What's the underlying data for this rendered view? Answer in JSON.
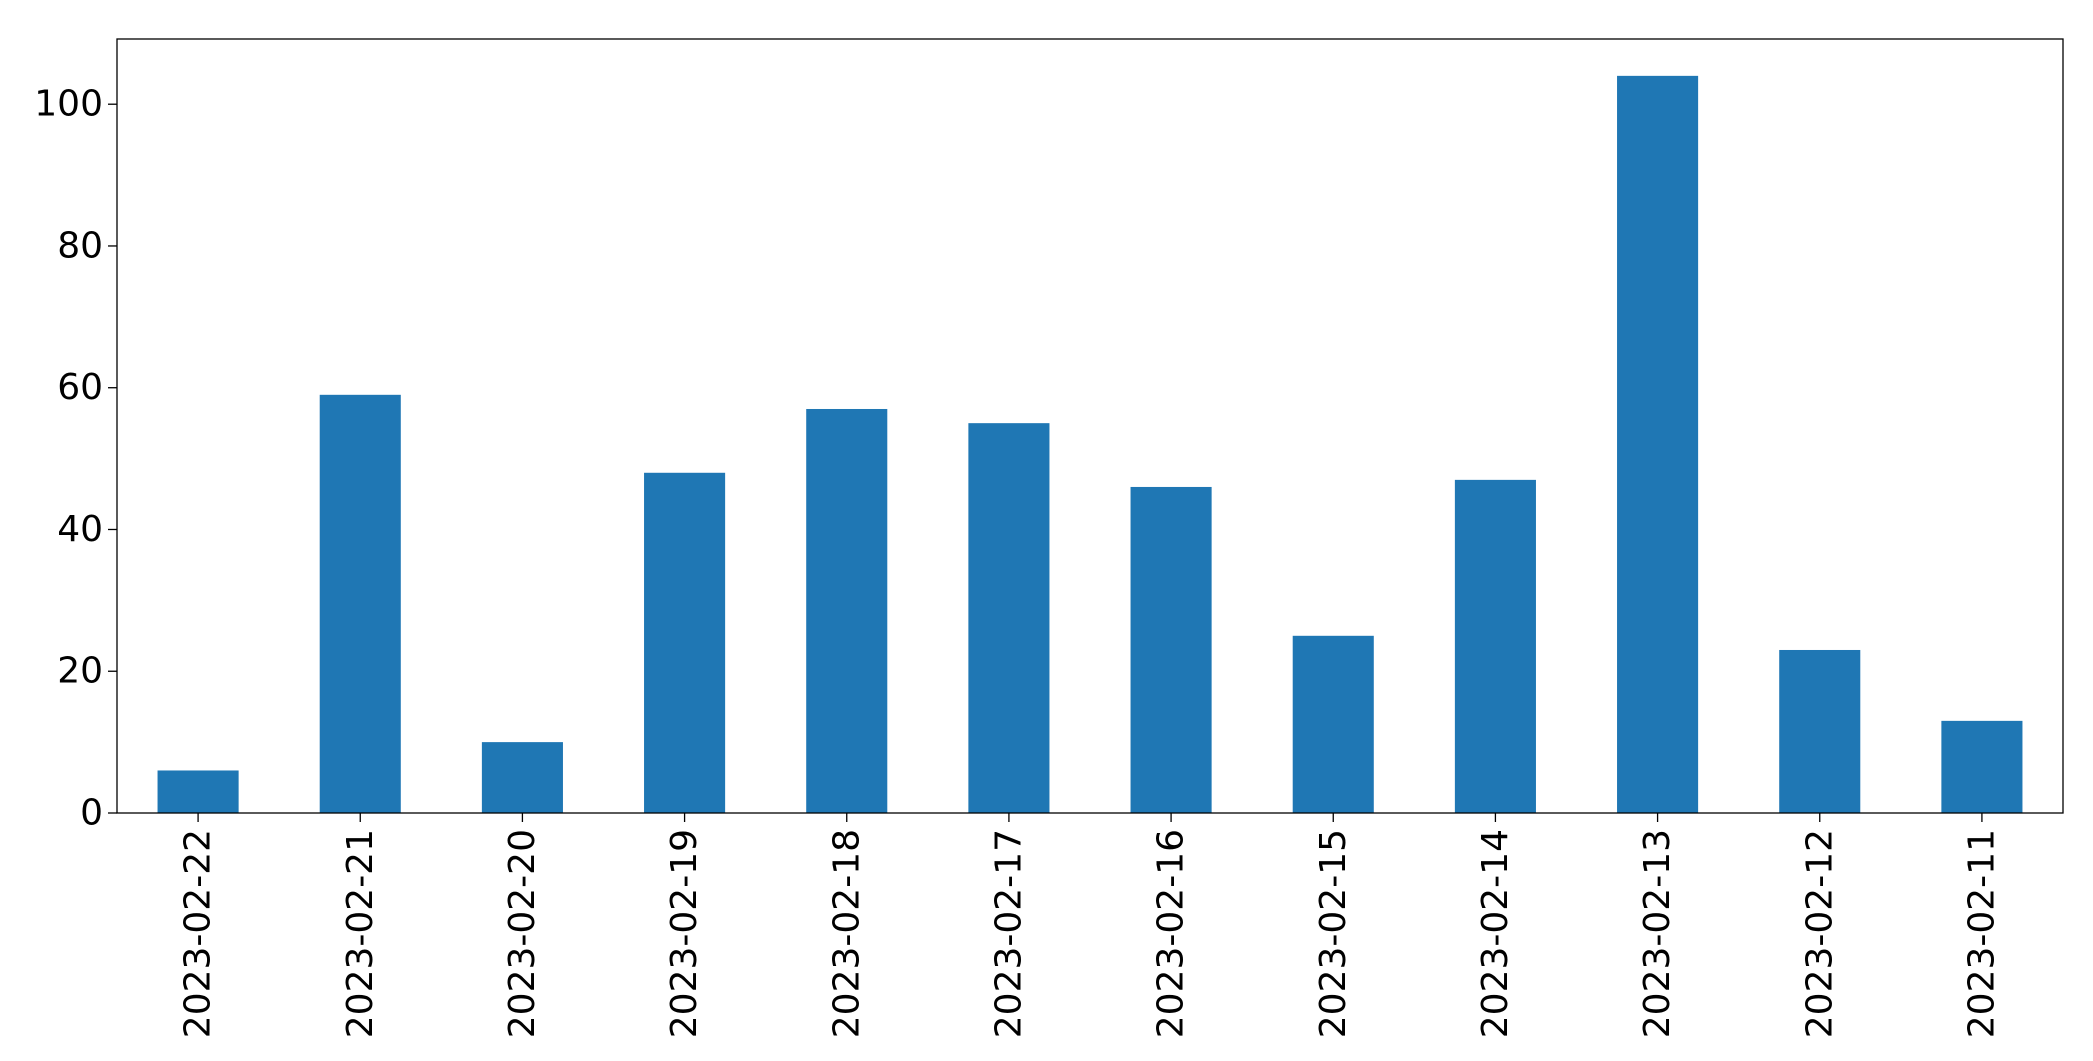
{
  "chart_data": {
    "type": "bar",
    "categories": [
      "2023-02-22",
      "2023-02-21",
      "2023-02-20",
      "2023-02-19",
      "2023-02-18",
      "2023-02-17",
      "2023-02-16",
      "2023-02-15",
      "2023-02-14",
      "2023-02-13",
      "2023-02-12",
      "2023-02-11"
    ],
    "values": [
      6,
      59,
      10,
      48,
      57,
      55,
      46,
      25,
      47,
      104,
      23,
      13
    ],
    "color": "#1f77b4",
    "ylim": [
      0,
      109.2
    ],
    "yticks": [
      0,
      20,
      40,
      60,
      80,
      100
    ],
    "grid": false
  }
}
